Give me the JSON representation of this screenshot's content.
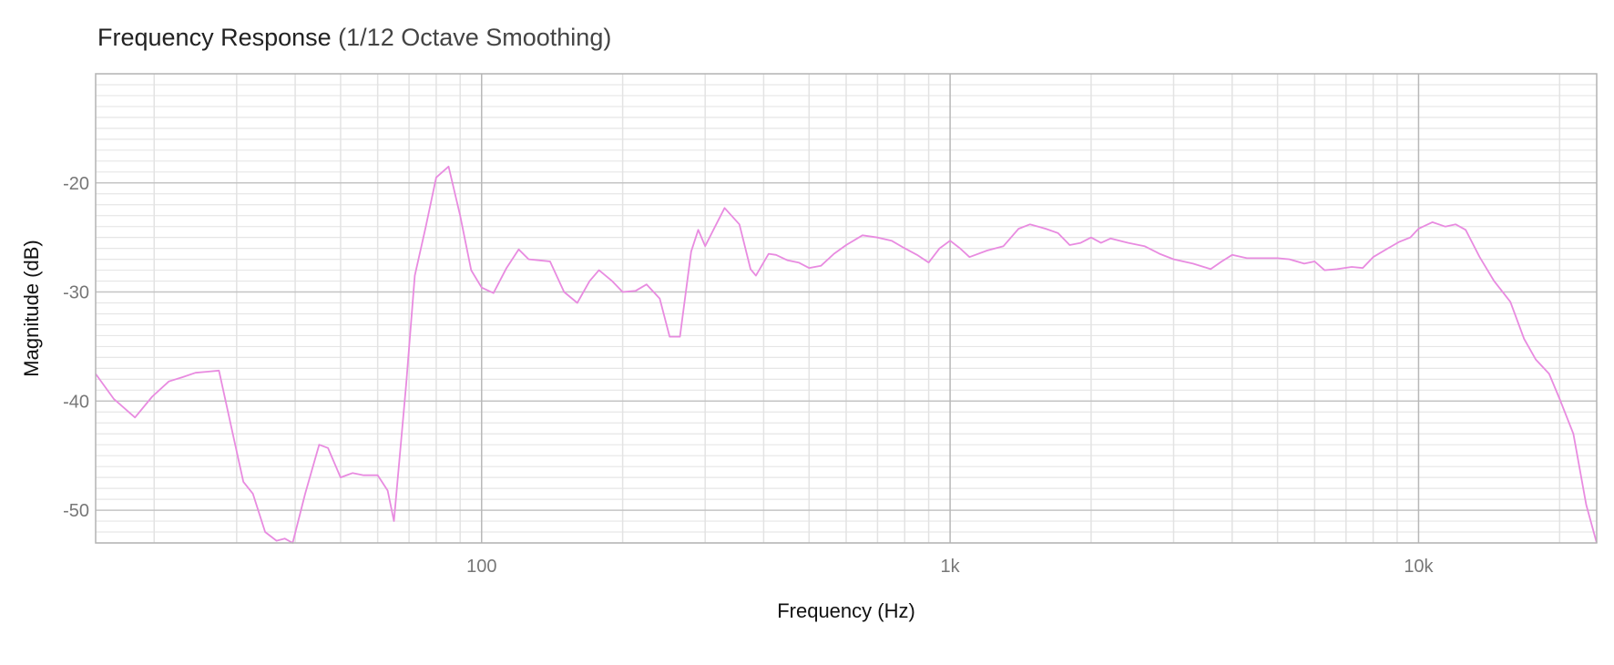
{
  "chart_data": {
    "type": "line",
    "title": "Frequency Response",
    "subtitle": "(1/12 Octave Smoothing)",
    "xlabel": "Frequency (Hz)",
    "ylabel": "Magnitude (dB)",
    "x_scale": "log",
    "xlim": [
      15,
      24000
    ],
    "ylim": [
      -53,
      -10
    ],
    "x_ticks": [
      {
        "value": 100,
        "label": "100"
      },
      {
        "value": 1000,
        "label": "1k"
      },
      {
        "value": 10000,
        "label": "10k"
      }
    ],
    "y_ticks": [
      {
        "value": -20,
        "label": "-20"
      },
      {
        "value": -30,
        "label": "-30"
      },
      {
        "value": -40,
        "label": "-40"
      },
      {
        "value": -50,
        "label": "-50"
      }
    ],
    "grid": true,
    "legend": "none",
    "series": [
      {
        "color": "#e88be0",
        "x": [
          15,
          16.4,
          18.2,
          19.8,
          21.5,
          23,
          24.5,
          26,
          27.5,
          29.5,
          31,
          32.5,
          34.5,
          36.5,
          38,
          39.5,
          42,
          45,
          47,
          50,
          53,
          56,
          60,
          63,
          65,
          69,
          72,
          76,
          80,
          85,
          90,
          95,
          100,
          106,
          113,
          120,
          126,
          133,
          140,
          150,
          160,
          170,
          178,
          190,
          200,
          213,
          225,
          240,
          252,
          265,
          280,
          290,
          300,
          315,
          330,
          355,
          375,
          385,
          410,
          425,
          450,
          475,
          500,
          530,
          565,
          600,
          650,
          700,
          750,
          800,
          850,
          900,
          950,
          1000,
          1050,
          1100,
          1200,
          1300,
          1400,
          1480,
          1600,
          1700,
          1800,
          1900,
          2000,
          2100,
          2200,
          2400,
          2600,
          2800,
          3000,
          3300,
          3600,
          3800,
          4000,
          4300,
          4700,
          5000,
          5300,
          5700,
          6000,
          6300,
          6700,
          7200,
          7600,
          8000,
          8600,
          9100,
          9600,
          10000,
          10700,
          11400,
          12000,
          12600,
          13500,
          14500,
          15700,
          16800,
          17800,
          19000,
          20000,
          21400,
          22800,
          24000
        ],
        "y": [
          -37.5,
          -39.8,
          -41.5,
          -39.6,
          -38.2,
          -37.8,
          -37.4,
          -37.3,
          -37.2,
          -43.2,
          -47.4,
          -48.5,
          -52.0,
          -52.8,
          -52.6,
          -53.0,
          -48.5,
          -44.0,
          -44.3,
          -47.0,
          -46.6,
          -46.8,
          -46.8,
          -48.2,
          -51.0,
          -38.5,
          -28.5,
          -24.0,
          -19.5,
          -18.5,
          -23.0,
          -28.0,
          -29.6,
          -30.1,
          -27.8,
          -26.1,
          -27.0,
          -27.1,
          -27.2,
          -30.0,
          -31.0,
          -29.0,
          -28.0,
          -29.0,
          -30.0,
          -29.9,
          -29.3,
          -30.6,
          -34.1,
          -34.1,
          -26.3,
          -24.3,
          -25.8,
          -24.0,
          -22.3,
          -23.8,
          -27.9,
          -28.5,
          -26.5,
          -26.6,
          -27.1,
          -27.3,
          -27.8,
          -27.6,
          -26.5,
          -25.7,
          -24.8,
          -25.0,
          -25.3,
          -26.0,
          -26.6,
          -27.3,
          -26.0,
          -25.3,
          -26.0,
          -26.8,
          -26.2,
          -25.8,
          -24.2,
          -23.8,
          -24.2,
          -24.6,
          -25.7,
          -25.5,
          -25.0,
          -25.5,
          -25.1,
          -25.5,
          -25.8,
          -26.5,
          -27.0,
          -27.4,
          -27.9,
          -27.2,
          -26.6,
          -26.9,
          -26.9,
          -26.9,
          -27.0,
          -27.4,
          -27.2,
          -28.0,
          -27.9,
          -27.7,
          -27.8,
          -26.8,
          -26.0,
          -25.4,
          -25.0,
          -24.2,
          -23.6,
          -24.0,
          -23.8,
          -24.3,
          -26.8,
          -29.0,
          -30.9,
          -34.3,
          -36.2,
          -37.5,
          -39.8,
          -43.0,
          -49.5,
          -53.0
        ]
      }
    ]
  }
}
